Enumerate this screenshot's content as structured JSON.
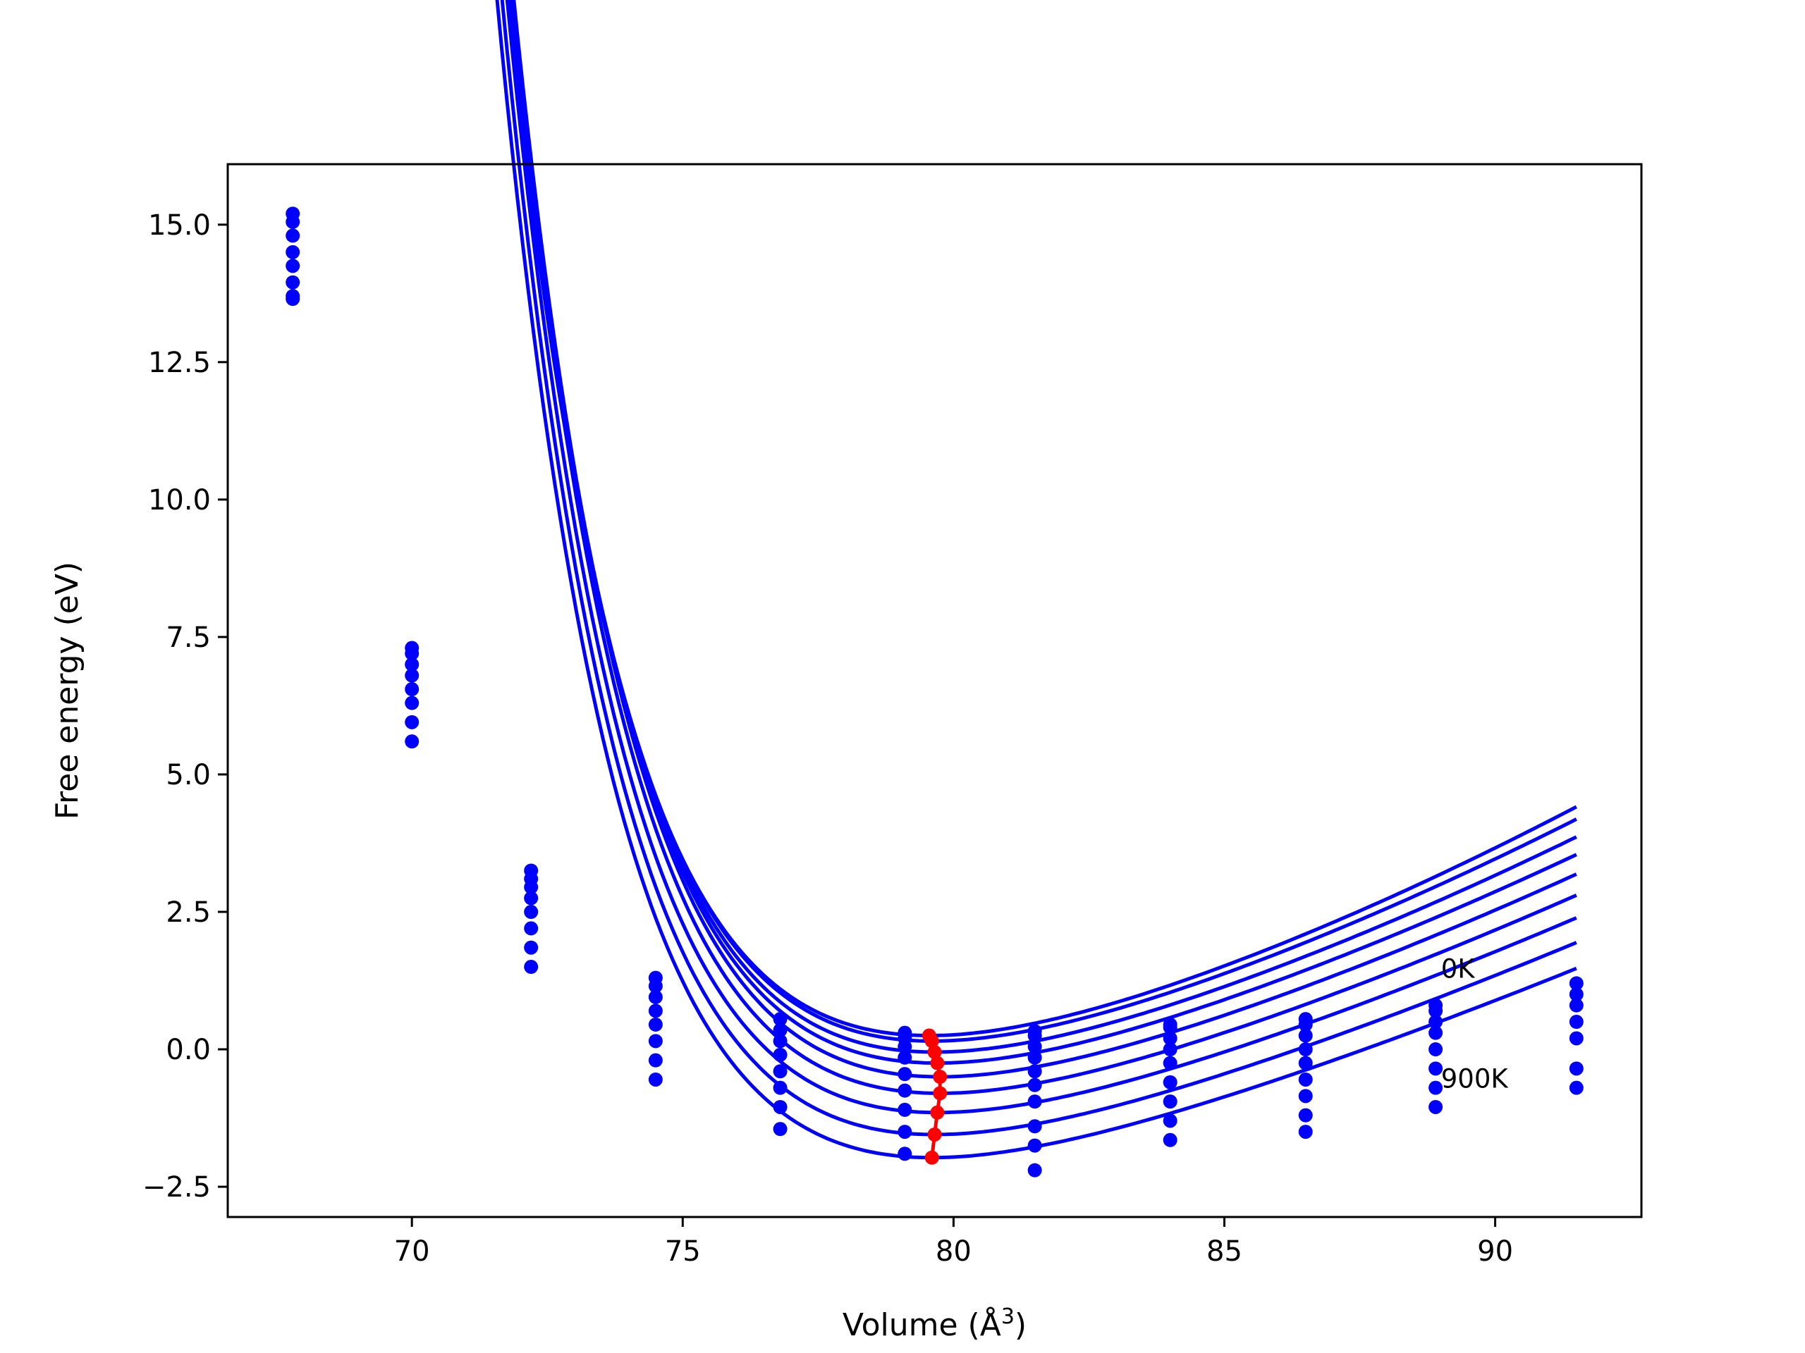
{
  "chart_data": {
    "type": "line",
    "xlabel": "Volume (Å",
    "xlabel_sup": "3",
    "xlabel_suffix": ")",
    "ylabel": "Free energy (eV)",
    "xlim": [
      66.6,
      92.7
    ],
    "ylim": [
      -3.05,
      16.1
    ],
    "xticks": [
      70,
      75,
      80,
      85,
      90
    ],
    "xtick_labels": [
      "70",
      "75",
      "80",
      "85",
      "90"
    ],
    "yticks": [
      -2.5,
      0.0,
      2.5,
      5.0,
      7.5,
      10.0,
      12.5,
      15.0
    ],
    "ytick_labels": [
      "−2.5",
      "0.0",
      "2.5",
      "5.0",
      "7.5",
      "10.0",
      "12.5",
      "15.0"
    ],
    "grid": false,
    "legend": "none",
    "colors": {
      "curves": "#0000ff",
      "minima": "#ff0000",
      "frame": "#000000"
    },
    "annotations": [
      {
        "text": "0K",
        "x": 89.0,
        "y": 1.3
      },
      {
        "text": "900K",
        "x": 89.0,
        "y": -0.7
      }
    ],
    "sample_volumes": [
      67.8,
      70.0,
      72.2,
      74.5,
      76.8,
      79.1,
      81.5,
      84.0,
      86.5,
      88.9,
      91.5
    ],
    "series": [
      {
        "x": [
          67.8,
          70.0,
          72.2,
          74.5,
          76.8,
          79.1,
          81.5,
          84.0,
          86.5,
          88.9,
          91.5
        ],
        "y": [
          15.2,
          7.3,
          3.25,
          1.3,
          0.55,
          0.3,
          0.33,
          0.45,
          0.55,
          0.8,
          1.2
        ]
      },
      {
        "x": [
          67.8,
          70.0,
          72.2,
          74.5,
          76.8,
          79.1,
          81.5,
          84.0,
          86.5,
          88.9,
          91.5
        ],
        "y": [
          15.05,
          7.2,
          3.1,
          1.15,
          0.35,
          0.2,
          0.25,
          0.4,
          0.45,
          0.7,
          1.0
        ]
      },
      {
        "x": [
          67.8,
          70.0,
          72.2,
          74.5,
          76.8,
          79.1,
          81.5,
          84.0,
          86.5,
          88.9,
          91.5
        ],
        "y": [
          14.8,
          7.0,
          2.95,
          0.95,
          0.15,
          0.05,
          0.05,
          0.2,
          0.25,
          0.5,
          0.8
        ]
      },
      {
        "x": [
          67.8,
          70.0,
          72.2,
          74.5,
          76.8,
          79.1,
          81.5,
          84.0,
          86.5,
          88.9,
          91.5
        ],
        "y": [
          14.5,
          6.8,
          2.75,
          0.7,
          -0.1,
          -0.15,
          -0.15,
          0.0,
          0.0,
          0.3,
          0.5
        ]
      },
      {
        "x": [
          67.8,
          70.0,
          72.2,
          74.5,
          76.8,
          79.1,
          81.5,
          84.0,
          86.5,
          88.9,
          91.5
        ],
        "y": [
          14.25,
          6.55,
          2.5,
          0.45,
          -0.4,
          -0.45,
          -0.4,
          -0.25,
          -0.25,
          0.0,
          0.2
        ]
      },
      {
        "x": [
          67.8,
          70.0,
          72.2,
          74.5,
          76.8,
          79.1,
          81.5,
          84.0,
          86.5,
          88.9,
          91.5
        ],
        "y": [
          13.95,
          6.3,
          2.2,
          0.15,
          -0.7,
          -0.75,
          -0.65,
          -0.6,
          -0.55,
          -0.35,
          -0.35
        ]
      },
      {
        "x": [
          67.8,
          70.0,
          72.2,
          74.5,
          76.8,
          79.1,
          81.5,
          84.0,
          86.5,
          88.9,
          91.5
        ],
        "y": [
          13.7,
          5.95,
          1.85,
          -0.2,
          -1.05,
          -1.1,
          -0.95,
          -0.95,
          -0.85,
          -0.7,
          -0.7
        ]
      },
      {
        "x": [
          67.8,
          70.0,
          72.2,
          74.5,
          76.8,
          79.1,
          81.5,
          84.0,
          86.5,
          88.9,
          91.5
        ],
        "y": [
          13.65,
          5.6,
          1.5,
          -0.55,
          -1.45,
          -1.5,
          -1.4,
          -1.3,
          -1.2,
          -1.05,
          null
        ]
      },
      {
        "x": [
          67.8,
          70.0,
          72.2,
          74.5,
          76.8,
          79.1,
          81.5,
          84.0,
          86.5,
          88.9,
          91.5
        ],
        "y": [
          null,
          null,
          null,
          null,
          null,
          -1.9,
          -1.75,
          -1.65,
          -1.5,
          null,
          null
        ]
      },
      {
        "x": [
          67.8,
          70.0,
          72.2,
          74.5,
          76.8,
          79.1,
          81.5,
          84.0,
          86.5,
          88.9,
          91.5
        ],
        "y": [
          null,
          null,
          null,
          null,
          null,
          null,
          -2.2,
          null,
          null,
          null,
          null
        ]
      }
    ],
    "fit_curves": [
      {
        "vmin": 79.55,
        "fmin": 0.25,
        "b": 0.4,
        "c": 0.0095
      },
      {
        "vmin": 79.6,
        "fmin": 0.15,
        "b": 0.4,
        "c": 0.0088
      },
      {
        "vmin": 79.65,
        "fmin": -0.05,
        "b": 0.4,
        "c": 0.0081
      },
      {
        "vmin": 79.7,
        "fmin": -0.25,
        "b": 0.4,
        "c": 0.0074
      },
      {
        "vmin": 79.75,
        "fmin": -0.5,
        "b": 0.4,
        "c": 0.0068
      },
      {
        "vmin": 79.75,
        "fmin": -0.8,
        "b": 0.4,
        "c": 0.0062
      },
      {
        "vmin": 79.7,
        "fmin": -1.15,
        "b": 0.4,
        "c": 0.0056
      },
      {
        "vmin": 79.65,
        "fmin": -1.55,
        "b": 0.4,
        "c": 0.0051
      },
      {
        "vmin": 79.6,
        "fmin": -1.97,
        "b": 0.4,
        "c": 0.0046
      }
    ],
    "minima": {
      "x": [
        79.55,
        79.6,
        79.65,
        79.7,
        79.75,
        79.75,
        79.7,
        79.65,
        79.6
      ],
      "y": [
        0.25,
        0.15,
        -0.05,
        -0.25,
        -0.5,
        -0.8,
        -1.15,
        -1.55,
        -1.97
      ]
    }
  }
}
